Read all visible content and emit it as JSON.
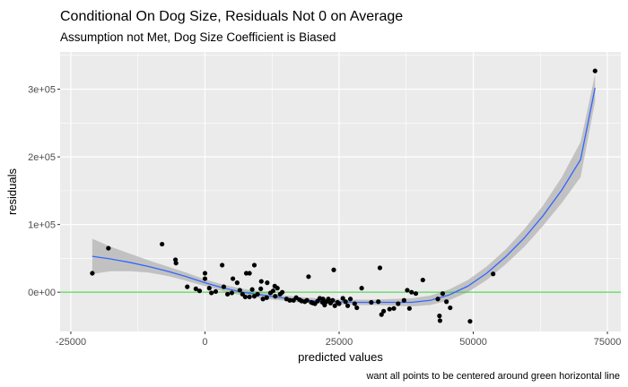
{
  "chart_data": {
    "type": "scatter",
    "title": "Conditional On Dog Size, Residuals Not 0 on Average",
    "subtitle": "Assumption not Met, Dog Size Coefficient is Biased",
    "xlabel": "predicted values",
    "ylabel": "residuals",
    "caption": "want all points to be centered around green horizontal line",
    "xlim": [
      -27000,
      77500
    ],
    "ylim": [
      -58000,
      355000
    ],
    "x_ticks": [
      -25000,
      0,
      25000,
      50000,
      75000
    ],
    "x_tick_labels": [
      "-25000",
      "0",
      "25000",
      "50000",
      "75000"
    ],
    "y_ticks": [
      0,
      100000,
      200000,
      300000
    ],
    "y_tick_labels": [
      "0e+00",
      "1e+05",
      "2e+05",
      "3e+05"
    ],
    "hline": {
      "y": 0,
      "color": "#33cc33"
    },
    "colors": {
      "panel": "#ebebeb",
      "grid": "#ffffff",
      "point": "#000000",
      "smooth": "#3366ff",
      "band": "#b3b3b3"
    },
    "points": [
      [
        -21000,
        28000
      ],
      [
        -18000,
        65000
      ],
      [
        -8000,
        71000
      ],
      [
        -5500,
        48000
      ],
      [
        -5400,
        43000
      ],
      [
        -3300,
        8000
      ],
      [
        -1700,
        5000
      ],
      [
        -1000,
        2000
      ],
      [
        0,
        28000
      ],
      [
        0,
        20000
      ],
      [
        800,
        6000
      ],
      [
        1200,
        -1000
      ],
      [
        2000,
        1000
      ],
      [
        3200,
        40000
      ],
      [
        3500,
        8000
      ],
      [
        4200,
        -3000
      ],
      [
        5000,
        -1000
      ],
      [
        5200,
        20000
      ],
      [
        6000,
        14000
      ],
      [
        6500,
        3000
      ],
      [
        7000,
        -3000
      ],
      [
        7500,
        -7000
      ],
      [
        7700,
        28000
      ],
      [
        8300,
        28000
      ],
      [
        8300,
        -7000
      ],
      [
        8800,
        4000
      ],
      [
        9200,
        -6000
      ],
      [
        9200,
        40000
      ],
      [
        9800,
        -3000
      ],
      [
        10400,
        5000
      ],
      [
        10500,
        16000
      ],
      [
        10800,
        -10000
      ],
      [
        11500,
        -8000
      ],
      [
        11600,
        14000
      ],
      [
        12200,
        -1000
      ],
      [
        12700,
        2000
      ],
      [
        13000,
        9000
      ],
      [
        13100,
        -6000
      ],
      [
        13500,
        6000
      ],
      [
        14000,
        -3000
      ],
      [
        14400,
        0
      ],
      [
        15200,
        -10000
      ],
      [
        15800,
        -12000
      ],
      [
        16500,
        -12000
      ],
      [
        17000,
        -8000
      ],
      [
        17600,
        -11000
      ],
      [
        18000,
        -13000
      ],
      [
        18600,
        -14000
      ],
      [
        19000,
        -12000
      ],
      [
        19300,
        23000
      ],
      [
        19800,
        -15000
      ],
      [
        20100,
        -16000
      ],
      [
        20500,
        -17000
      ],
      [
        21000,
        -13000
      ],
      [
        21400,
        -9000
      ],
      [
        21900,
        -15000
      ],
      [
        22000,
        -10000
      ],
      [
        22300,
        -19000
      ],
      [
        22600,
        -14000
      ],
      [
        23000,
        -10000
      ],
      [
        23400,
        -16000
      ],
      [
        23800,
        -12000
      ],
      [
        24000,
        33000
      ],
      [
        24200,
        -20000
      ],
      [
        24700,
        -15000
      ],
      [
        25000,
        -17000
      ],
      [
        25700,
        -9000
      ],
      [
        26200,
        -14000
      ],
      [
        26600,
        -20000
      ],
      [
        27100,
        -10000
      ],
      [
        27900,
        -17000
      ],
      [
        28300,
        -23000
      ],
      [
        29200,
        6000
      ],
      [
        31000,
        -15000
      ],
      [
        32300,
        -14000
      ],
      [
        32600,
        36000
      ],
      [
        32900,
        -33000
      ],
      [
        33300,
        -28000
      ],
      [
        34400,
        -25000
      ],
      [
        35200,
        -24000
      ],
      [
        36000,
        -17000
      ],
      [
        37100,
        -12000
      ],
      [
        37700,
        3000
      ],
      [
        38100,
        -24000
      ],
      [
        38500,
        0
      ],
      [
        39300,
        -2000
      ],
      [
        40600,
        18000
      ],
      [
        43400,
        -10000
      ],
      [
        43700,
        -35000
      ],
      [
        43800,
        -42000
      ],
      [
        44300,
        -2000
      ],
      [
        45000,
        -14000
      ],
      [
        45700,
        -23000
      ],
      [
        49400,
        -43000
      ],
      [
        53700,
        27000
      ],
      [
        72700,
        327000
      ]
    ],
    "smooth": [
      [
        -21000,
        53000
      ],
      [
        -17500,
        49000
      ],
      [
        -14000,
        44000
      ],
      [
        -10500,
        38000
      ],
      [
        -7000,
        31000
      ],
      [
        -3500,
        23000
      ],
      [
        0,
        14000
      ],
      [
        3500,
        6000
      ],
      [
        7000,
        0
      ],
      [
        10500,
        -4000
      ],
      [
        14000,
        -8000
      ],
      [
        17500,
        -11000
      ],
      [
        21000,
        -13000
      ],
      [
        24500,
        -14000
      ],
      [
        28000,
        -15000
      ],
      [
        31500,
        -15000
      ],
      [
        35000,
        -15000
      ],
      [
        38500,
        -15000
      ],
      [
        42000,
        -12000
      ],
      [
        45500,
        -4000
      ],
      [
        49000,
        9000
      ],
      [
        52500,
        28000
      ],
      [
        56000,
        52000
      ],
      [
        59500,
        80000
      ],
      [
        63000,
        113000
      ],
      [
        66500,
        151000
      ],
      [
        70000,
        196000
      ],
      [
        72700,
        302000
      ]
    ],
    "band_upper": [
      [
        -21000,
        79000
      ],
      [
        -17500,
        67000
      ],
      [
        -14000,
        57000
      ],
      [
        -10500,
        47000
      ],
      [
        -7000,
        38000
      ],
      [
        -3500,
        29000
      ],
      [
        0,
        19000
      ],
      [
        3500,
        11000
      ],
      [
        7000,
        5000
      ],
      [
        10500,
        1000
      ],
      [
        14000,
        -4000
      ],
      [
        17500,
        -7000
      ],
      [
        21000,
        -9000
      ],
      [
        24500,
        -10000
      ],
      [
        28000,
        -11000
      ],
      [
        31500,
        -11000
      ],
      [
        35000,
        -10000
      ],
      [
        38500,
        -9000
      ],
      [
        42000,
        -5000
      ],
      [
        45500,
        4000
      ],
      [
        49000,
        18000
      ],
      [
        52500,
        38000
      ],
      [
        56000,
        63000
      ],
      [
        59500,
        93000
      ],
      [
        63000,
        128000
      ],
      [
        66500,
        170000
      ],
      [
        70000,
        222000
      ],
      [
        72700,
        322000
      ]
    ],
    "band_lower": [
      [
        -21000,
        27000
      ],
      [
        -17500,
        31000
      ],
      [
        -14000,
        31000
      ],
      [
        -10500,
        29000
      ],
      [
        -7000,
        24000
      ],
      [
        -3500,
        17000
      ],
      [
        0,
        9000
      ],
      [
        3500,
        1000
      ],
      [
        7000,
        -5000
      ],
      [
        10500,
        -9000
      ],
      [
        14000,
        -12000
      ],
      [
        17500,
        -15000
      ],
      [
        21000,
        -17000
      ],
      [
        24500,
        -18000
      ],
      [
        28000,
        -19000
      ],
      [
        31500,
        -19000
      ],
      [
        35000,
        -20000
      ],
      [
        38500,
        -21000
      ],
      [
        42000,
        -19000
      ],
      [
        45500,
        -12000
      ],
      [
        49000,
        0
      ],
      [
        52500,
        18000
      ],
      [
        56000,
        41000
      ],
      [
        59500,
        67000
      ],
      [
        63000,
        98000
      ],
      [
        66500,
        132000
      ],
      [
        70000,
        170000
      ],
      [
        72700,
        282000
      ]
    ]
  }
}
